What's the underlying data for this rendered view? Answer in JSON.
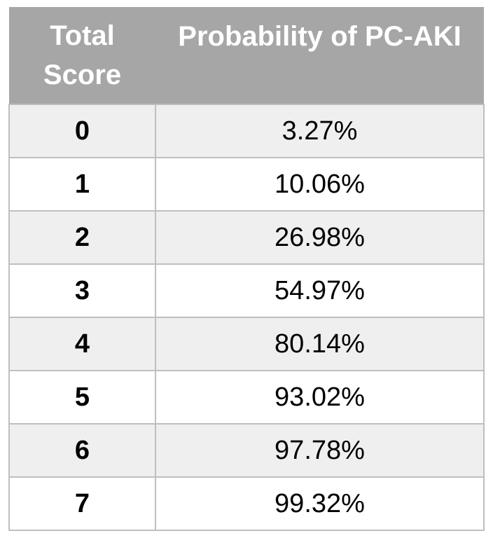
{
  "table": {
    "headers": {
      "score_line1": "Total",
      "score_line2": "Score",
      "probability": "Probability of PC-AKI"
    },
    "rows": [
      {
        "score": "0",
        "probability": "3.27%"
      },
      {
        "score": "1",
        "probability": "10.06%"
      },
      {
        "score": "2",
        "probability": "26.98%"
      },
      {
        "score": "3",
        "probability": "54.97%"
      },
      {
        "score": "4",
        "probability": "80.14%"
      },
      {
        "score": "5",
        "probability": "93.02%"
      },
      {
        "score": "6",
        "probability": "97.78%"
      },
      {
        "score": "7",
        "probability": "99.32%"
      }
    ],
    "colors": {
      "header_bg": "#a6a6a6",
      "header_text": "#ffffff",
      "row_alt_bg": "#efefef",
      "border": "#bfbfbf"
    }
  }
}
